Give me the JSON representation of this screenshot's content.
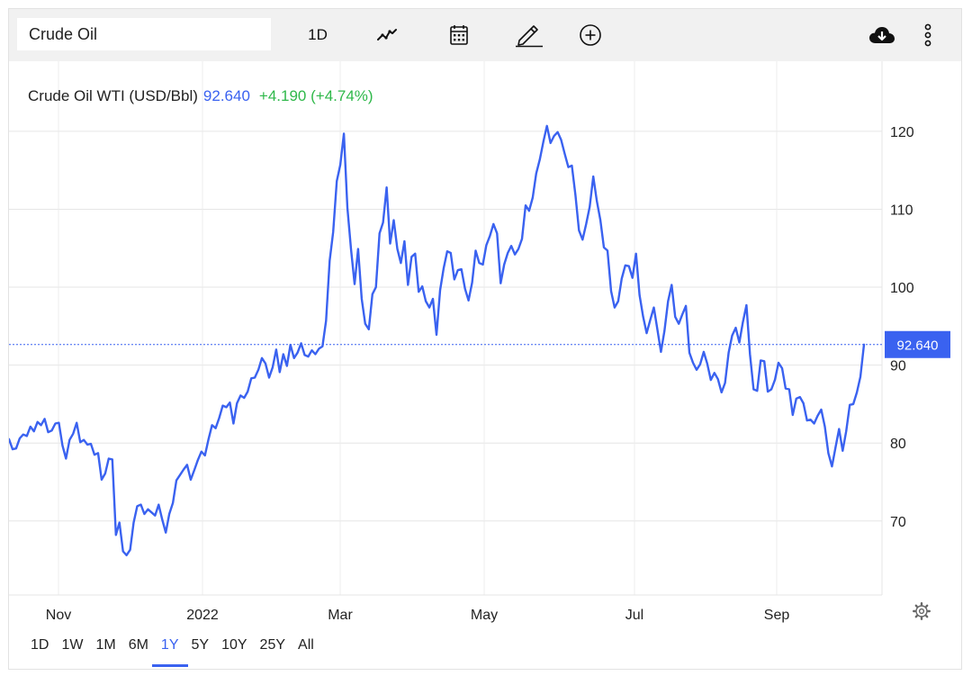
{
  "toolbar": {
    "search_value": "Crude Oil",
    "interval_label": "1D",
    "icons": [
      "line-chart-icon",
      "calendar-icon",
      "pencil-icon",
      "plus-circle-icon",
      "cloud-download-icon",
      "more-vertical-icon"
    ]
  },
  "header": {
    "name": "Crude Oil WTI (USD/Bbl)",
    "price": "92.640",
    "change": "+4.190 (+4.74%)",
    "price_color": "#3a62f0",
    "change_color": "#2fb84a"
  },
  "range_buttons": [
    {
      "label": "1D",
      "active": false
    },
    {
      "label": "1W",
      "active": false
    },
    {
      "label": "1M",
      "active": false
    },
    {
      "label": "6M",
      "active": false
    },
    {
      "label": "1Y",
      "active": true
    },
    {
      "label": "5Y",
      "active": false
    },
    {
      "label": "10Y",
      "active": false
    },
    {
      "label": "25Y",
      "active": false
    },
    {
      "label": "All",
      "active": false
    }
  ],
  "chart_data": {
    "type": "line",
    "series": [
      {
        "color": "#3a62f0",
        "values": [
          80.5,
          79.2,
          79.3,
          80.6,
          81.1,
          80.9,
          82.1,
          81.5,
          82.7,
          82.3,
          83.1,
          81.4,
          81.6,
          82.5,
          82.6,
          79.7,
          78.0,
          80.4,
          81.2,
          82.6,
          80.1,
          80.4,
          79.8,
          79.9,
          78.5,
          78.7,
          75.3,
          76.1,
          78.0,
          77.9,
          68.2,
          69.8,
          66.1,
          65.6,
          66.3,
          69.8,
          71.9,
          72.1,
          70.9,
          71.5,
          71.1,
          70.7,
          72.1,
          70.2,
          68.5,
          70.9,
          72.3,
          75.2,
          75.9,
          76.6,
          77.2,
          75.3,
          76.5,
          77.8,
          78.9,
          78.4,
          80.5,
          82.3,
          81.9,
          83.2,
          84.8,
          84.6,
          85.2,
          82.5,
          85.1,
          86.1,
          85.8,
          86.6,
          88.3,
          88.4,
          89.4,
          90.9,
          90.2,
          88.4,
          89.7,
          92.0,
          89.1,
          91.4,
          89.9,
          92.6,
          90.9,
          91.6,
          92.8,
          91.3,
          91.1,
          91.9,
          91.4,
          92.1,
          92.4,
          95.7,
          103.4,
          107.1,
          113.6,
          115.7,
          119.7,
          110.2,
          104.9,
          100.4,
          104.9,
          98.5,
          95.3,
          94.6,
          99.1,
          100.0,
          106.9,
          108.3,
          112.8,
          105.6,
          108.6,
          104.9,
          103.1,
          105.9,
          100.3,
          103.9,
          104.3,
          99.4,
          100.1,
          98.2,
          97.4,
          98.5,
          93.9,
          99.6,
          102.4,
          104.6,
          104.4,
          101.0,
          102.2,
          102.3,
          99.8,
          98.3,
          100.6,
          104.7,
          103.1,
          102.9,
          105.4,
          106.6,
          108.1,
          106.9,
          100.5,
          102.9,
          104.4,
          105.3,
          104.2,
          104.9,
          106.2,
          110.5,
          109.8,
          111.5,
          114.6,
          116.4,
          118.7,
          120.7,
          118.5,
          119.4,
          119.9,
          118.9,
          117.1,
          115.4,
          115.6,
          111.8,
          107.3,
          106.1,
          108.1,
          110.3,
          114.2,
          111.1,
          108.6,
          105.1,
          104.7,
          99.5,
          97.4,
          98.2,
          101.1,
          102.8,
          102.7,
          101.2,
          104.3,
          99.0,
          96.2,
          94.1,
          95.8,
          97.4,
          94.6,
          91.7,
          94.4,
          98.2,
          100.3,
          96.2,
          95.3,
          96.5,
          97.6,
          91.6,
          90.3,
          89.4,
          90.1,
          91.7,
          90.2,
          88.1,
          89.0,
          88.2,
          86.5,
          87.7,
          91.6,
          93.8,
          94.8,
          92.9,
          95.5,
          97.7,
          91.4,
          86.9,
          86.7,
          90.6,
          90.5,
          86.6,
          86.9,
          88.1,
          90.3,
          89.6,
          87.0,
          86.9,
          83.6,
          85.7,
          85.9,
          85.1,
          82.9,
          83.0,
          82.5,
          83.5,
          84.3,
          82.1,
          78.7,
          77.0,
          79.4,
          81.8,
          79.0,
          81.5,
          84.9,
          85.0,
          86.5,
          88.5,
          92.64
        ]
      }
    ],
    "x_ticks": [
      "Nov",
      "2022",
      "Mar",
      "May",
      "Jul",
      "Sep"
    ],
    "y_ticks": [
      70,
      80,
      90,
      100,
      110,
      120
    ],
    "ylim": [
      60.5,
      129
    ],
    "last_value_label": "92.640",
    "reference_line": 92.64,
    "grid": true
  }
}
